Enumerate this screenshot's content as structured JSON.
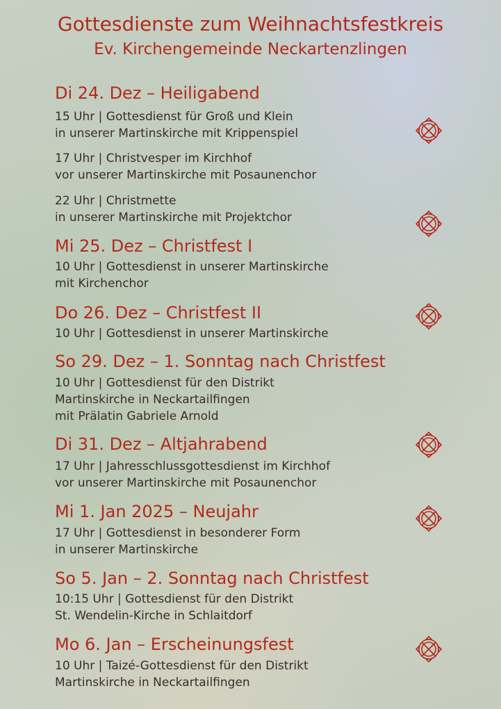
{
  "header": {
    "title": "Gottesdienste zum Weihnachtsfestkreis",
    "subtitle": "Ev. Kirchengemeinde Neckartenzlingen"
  },
  "colors": {
    "accent": "#b22a1c",
    "text": "#3a2b2b"
  },
  "days": [
    {
      "heading": "Di 24. Dez – Heiligabend",
      "lines": [
        "15 Uhr | Gottesdienst für Groß und Klein",
        "in unserer Martinskirche mit Krippenspiel",
        "17 Uhr | Christvesper im Kirchhof",
        "vor unserer Martinskirche mit Posaunenchor",
        "22 Uhr | Christmette",
        "in unserer Martinskirche mit Projektchor"
      ]
    },
    {
      "heading": "Mi 25. Dez – Christfest I",
      "lines": [
        "10 Uhr | Gottesdienst in unserer Martinskirche",
        "mit Kirchenchor"
      ]
    },
    {
      "heading": "Do 26. Dez – Christfest II",
      "lines": [
        "10 Uhr | Gottesdienst in unserer Martinskirche"
      ]
    },
    {
      "heading": "So 29. Dez – 1. Sonntag nach Christfest",
      "lines": [
        "10 Uhr | Gottesdienst für den Distrikt",
        "Martinskirche in Neckartailfingen",
        "mit Prälatin Gabriele Arnold"
      ]
    },
    {
      "heading": "Di 31. Dez – Altjahrabend",
      "lines": [
        "17 Uhr | Jahresschlussgottesdienst im Kirchhof",
        "vor unserer Martinskirche mit Posaunenchor"
      ]
    },
    {
      "heading": "Mi 1. Jan 2025 – Neujahr",
      "lines": [
        "17 Uhr | Gottesdienst in besonderer Form",
        "in unserer Martinskirche"
      ]
    },
    {
      "heading": "So 5. Jan – 2. Sonntag nach Christfest",
      "lines": [
        "10:15 Uhr | Gottesdienst für den Distrikt",
        "St. Wendelin-Kirche in Schlaitdorf"
      ]
    },
    {
      "heading": "Mo 6. Jan – Erscheinungsfest",
      "lines": [
        "10 Uhr  |  Taizé-Gottesdienst für den Distrikt",
        "Martinskirche in Neckartailfingen"
      ]
    }
  ],
  "ornaments": [
    "ornament-icon",
    "ornament-icon",
    "ornament-icon",
    "ornament-icon",
    "ornament-icon",
    "ornament-icon"
  ]
}
